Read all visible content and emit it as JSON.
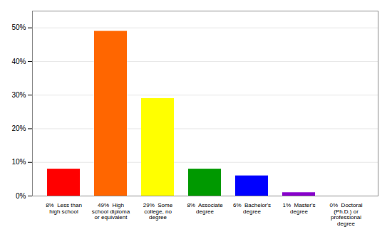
{
  "chart_data": {
    "type": "bar",
    "categories": [
      "8%  Less than\nhigh school",
      "49%  High\nschool diploma\nor equivalent",
      "29%  Some\ncollege, no\ndegree",
      "8%  Associate\ndegree",
      "6%  Bachelor's\ndegree",
      "1%  Master's\ndegree",
      "0%  Doctoral\n(Ph.D.) or\nprofessional\ndegree"
    ],
    "values": [
      8,
      49,
      29,
      8,
      6,
      1,
      0
    ],
    "colors": [
      "#ff0000",
      "#ff6600",
      "#ffff00",
      "#009900",
      "#0000ff",
      "#8800cc",
      "#ff00ff"
    ],
    "ylim": [
      0,
      55
    ],
    "yticks": [
      {
        "value": 0,
        "label": "0%"
      },
      {
        "value": 10,
        "label": "10%"
      },
      {
        "value": 20,
        "label": "20%"
      },
      {
        "value": 30,
        "label": "30%"
      },
      {
        "value": 40,
        "label": "40%"
      },
      {
        "value": 50,
        "label": "50%"
      }
    ],
    "grid": true
  }
}
